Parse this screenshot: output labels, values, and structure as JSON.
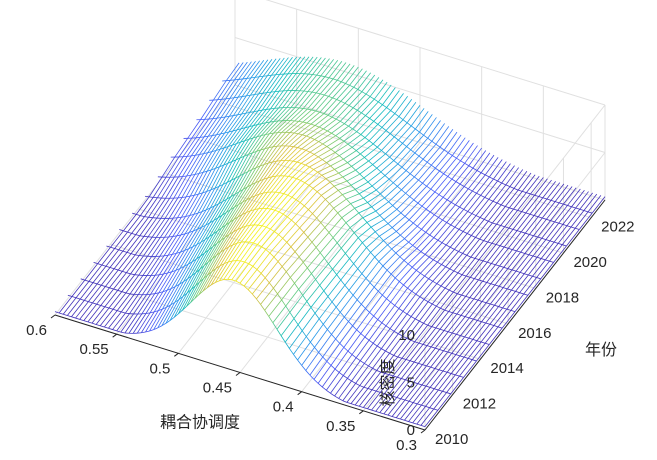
{
  "chart_data": {
    "type": "surface",
    "title": "",
    "xlabel": "耦合协调度",
    "ylabel": "年份",
    "zlabel": "核密度",
    "xlim": [
      0.3,
      0.6
    ],
    "ylim": [
      2010,
      2023
    ],
    "zlim": [
      0,
      10
    ],
    "x_ticks": [
      "0.3",
      "0.35",
      "0.4",
      "0.45",
      "0.5",
      "0.55",
      "0.6"
    ],
    "y_ticks": [
      "2010",
      "2012",
      "2014",
      "2016",
      "2018",
      "2020",
      "2022"
    ],
    "z_ticks": [
      "0",
      "5",
      "10"
    ],
    "years": [
      2010,
      2011,
      2012,
      2013,
      2014,
      2015,
      2016,
      2017,
      2018,
      2019,
      2020,
      2021,
      2022,
      2023
    ],
    "grid": true,
    "colormap": "parula",
    "shading": "mesh",
    "series": [
      {
        "year": 2010,
        "peak_x": 0.455,
        "peak_density": 9.5
      },
      {
        "year": 2012,
        "peak_x": 0.46,
        "peak_density": 9.8
      },
      {
        "year": 2014,
        "peak_x": 0.465,
        "peak_density": 9.6
      },
      {
        "year": 2016,
        "peak_x": 0.47,
        "peak_density": 9.3
      },
      {
        "year": 2018,
        "peak_x": 0.49,
        "peak_density": 8.0
      },
      {
        "year": 2020,
        "peak_x": 0.5,
        "peak_density": 6.4
      },
      {
        "year": 2022,
        "peak_x": 0.51,
        "peak_density": 6.0
      }
    ]
  }
}
